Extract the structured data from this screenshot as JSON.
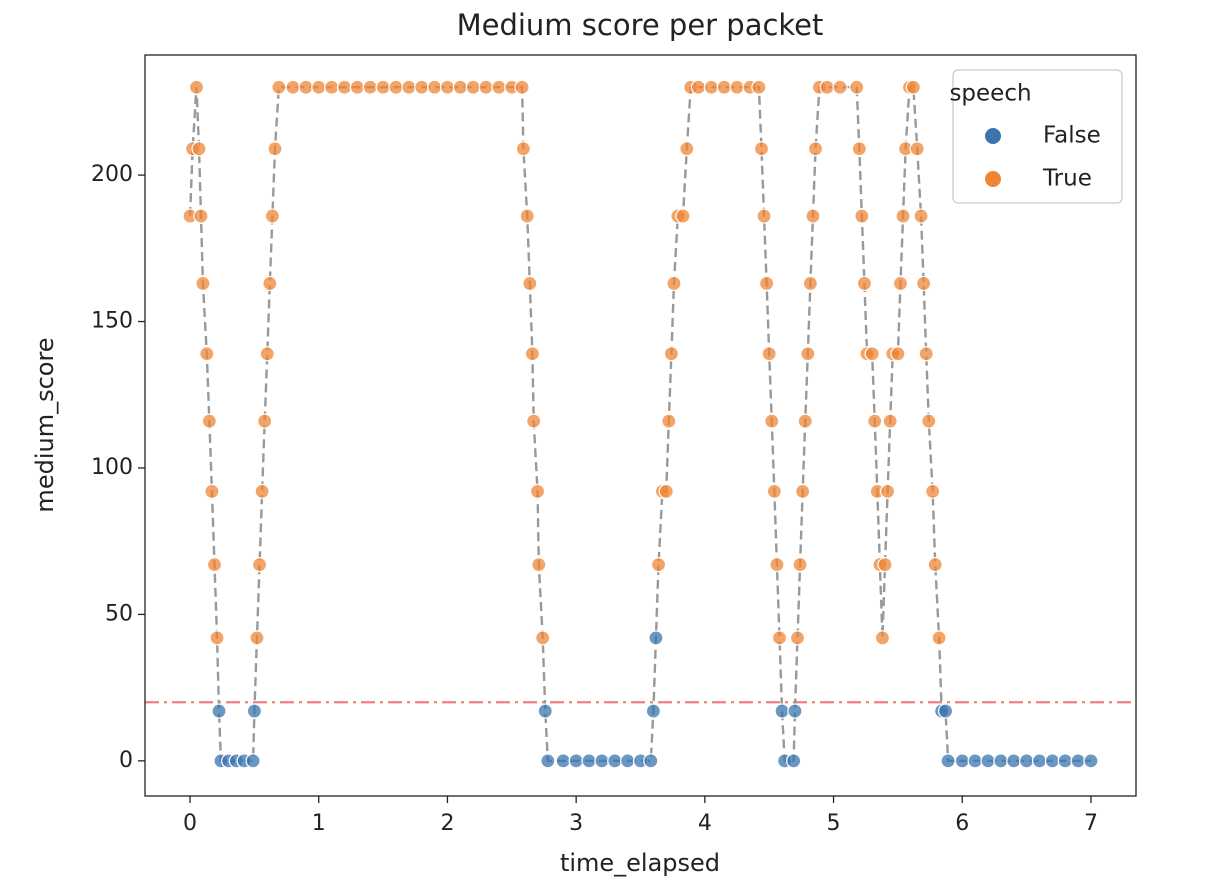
{
  "chart_data": {
    "type": "scatter",
    "title": "Medium score per packet",
    "x_label": "time_elapsed",
    "y_label": "medium_score",
    "xlim": [
      -0.35,
      7.35
    ],
    "ylim": [
      -12,
      241
    ],
    "xticks": [
      0,
      1,
      2,
      3,
      4,
      5,
      6,
      7
    ],
    "yticks": [
      0,
      50,
      100,
      150,
      200
    ],
    "line": {
      "color": "#999999",
      "style": "dashed"
    },
    "threshold": {
      "value": 20,
      "color": "#ee8080"
    },
    "legend": {
      "title": "speech",
      "loc": "upper right",
      "entries": [
        {
          "name": "False",
          "color": "#3a75af"
        },
        {
          "name": "True",
          "color": "#ef8636"
        }
      ]
    },
    "x": [
      0,
      0.02,
      0.05,
      0.07,
      0.085,
      0.1,
      0.13,
      0.15,
      0.17,
      0.19,
      0.21,
      0.225,
      0.24,
      0.3,
      0.36,
      0.42,
      0.49,
      0.5,
      0.52,
      0.54,
      0.56,
      0.58,
      0.6,
      0.62,
      0.64,
      0.66,
      0.69,
      0.8,
      0.9,
      1.0,
      1.1,
      1.2,
      1.3,
      1.4,
      1.5,
      1.6,
      1.7,
      1.8,
      1.9,
      2.0,
      2.1,
      2.2,
      2.3,
      2.4,
      2.5,
      2.58,
      2.59,
      2.62,
      2.64,
      2.66,
      2.67,
      2.7,
      2.71,
      2.74,
      2.76,
      2.78,
      2.9,
      3.0,
      3.1,
      3.2,
      3.3,
      3.4,
      3.5,
      3.58,
      3.6,
      3.62,
      3.64,
      3.67,
      3.7,
      3.72,
      3.74,
      3.76,
      3.79,
      3.83,
      3.86,
      3.89,
      3.95,
      4.05,
      4.15,
      4.25,
      4.35,
      4.42,
      4.44,
      4.46,
      4.48,
      4.5,
      4.52,
      4.54,
      4.56,
      4.58,
      4.6,
      4.62,
      4.69,
      4.7,
      4.72,
      4.74,
      4.76,
      4.78,
      4.8,
      4.82,
      4.84,
      4.86,
      4.89,
      4.95,
      5.05,
      5.18,
      5.2,
      5.22,
      5.24,
      5.26,
      5.3,
      5.32,
      5.34,
      5.36,
      5.38,
      5.4,
      5.42,
      5.44,
      5.46,
      5.5,
      5.52,
      5.54,
      5.56,
      5.59,
      5.62,
      5.65,
      5.68,
      5.7,
      5.72,
      5.74,
      5.77,
      5.79,
      5.82,
      5.84,
      5.87,
      5.89,
      6.0,
      6.1,
      6.2,
      6.3,
      6.4,
      6.5,
      6.6,
      6.7,
      6.8,
      6.9,
      7.0
    ],
    "values": [
      186,
      209,
      230,
      209,
      186,
      163,
      139,
      116,
      92,
      67,
      42,
      17,
      0,
      0,
      0,
      0,
      0,
      17,
      42,
      67,
      92,
      116,
      139,
      163,
      186,
      209,
      230,
      230,
      230,
      230,
      230,
      230,
      230,
      230,
      230,
      230,
      230,
      230,
      230,
      230,
      230,
      230,
      230,
      230,
      230,
      230,
      209,
      186,
      163,
      139,
      116,
      92,
      67,
      42,
      17,
      0,
      0,
      0,
      0,
      0,
      0,
      0,
      0,
      0,
      17,
      42,
      67,
      92,
      92,
      116,
      139,
      163,
      186,
      186,
      209,
      230,
      230,
      230,
      230,
      230,
      230,
      230,
      209,
      186,
      163,
      139,
      116,
      92,
      67,
      42,
      17,
      0,
      0,
      17,
      42,
      67,
      92,
      116,
      139,
      163,
      186,
      209,
      230,
      230,
      230,
      230,
      209,
      186,
      163,
      139,
      139,
      116,
      92,
      67,
      42,
      67,
      92,
      116,
      139,
      139,
      163,
      186,
      209,
      230,
      230,
      209,
      186,
      163,
      139,
      116,
      92,
      67,
      42,
      17,
      17,
      0,
      0,
      0,
      0,
      0,
      0,
      0,
      0,
      0,
      0,
      0,
      0
    ],
    "hue": [
      "True",
      "True",
      "True",
      "True",
      "True",
      "True",
      "True",
      "True",
      "True",
      "True",
      "True",
      "False",
      "False",
      "False",
      "False",
      "False",
      "False",
      "False",
      "True",
      "True",
      "True",
      "True",
      "True",
      "True",
      "True",
      "True",
      "True",
      "True",
      "True",
      "True",
      "True",
      "True",
      "True",
      "True",
      "True",
      "True",
      "True",
      "True",
      "True",
      "True",
      "True",
      "True",
      "True",
      "True",
      "True",
      "True",
      "True",
      "True",
      "True",
      "True",
      "True",
      "True",
      "True",
      "True",
      "False",
      "False",
      "False",
      "False",
      "False",
      "False",
      "False",
      "False",
      "False",
      "False",
      "False",
      "False",
      "True",
      "True",
      "True",
      "True",
      "True",
      "True",
      "True",
      "True",
      "True",
      "True",
      "True",
      "True",
      "True",
      "True",
      "True",
      "True",
      "True",
      "True",
      "True",
      "True",
      "True",
      "True",
      "True",
      "True",
      "False",
      "False",
      "False",
      "False",
      "True",
      "True",
      "True",
      "True",
      "True",
      "True",
      "True",
      "True",
      "True",
      "True",
      "True",
      "True",
      "True",
      "True",
      "True",
      "True",
      "True",
      "True",
      "True",
      "True",
      "True",
      "True",
      "True",
      "True",
      "True",
      "True",
      "True",
      "True",
      "True",
      "True",
      "True",
      "True",
      "True",
      "True",
      "True",
      "True",
      "True",
      "True",
      "True",
      "False",
      "False",
      "False",
      "False",
      "False",
      "False",
      "False",
      "False",
      "False",
      "False",
      "False",
      "False",
      "False",
      "False"
    ]
  }
}
